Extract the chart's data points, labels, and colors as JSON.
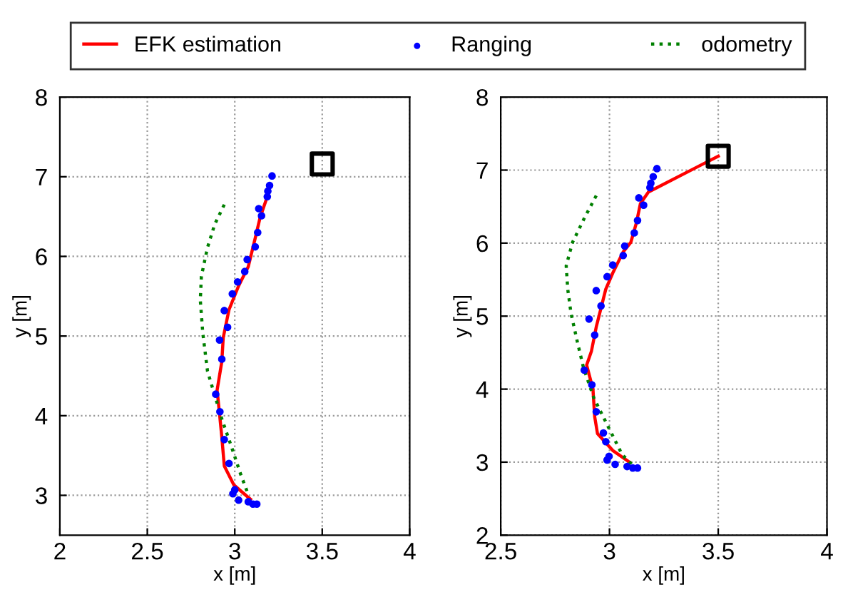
{
  "chart_data": [
    {
      "type": "line",
      "xlabel": "x [m]",
      "ylabel": "y [m]",
      "xlim": [
        2,
        4
      ],
      "ylim": [
        2.5,
        8
      ],
      "xticks": [
        2,
        2.5,
        3,
        3.5,
        4
      ],
      "yticks": [
        3,
        4,
        5,
        6,
        7,
        8
      ],
      "grid": true,
      "legend": "top",
      "series": [
        {
          "name": "EFK estimation",
          "color": "#ff0000",
          "line_style": "solid",
          "marker": "none",
          "x": [
            3.178,
            3.145,
            3.117,
            3.077,
            3.022,
            2.967,
            2.934,
            2.926,
            2.899,
            2.913,
            2.926,
            2.94,
            2.995,
            3.09
          ],
          "values": [
            6.7,
            6.49,
            6.23,
            5.87,
            5.63,
            5.33,
            4.98,
            4.68,
            4.32,
            4.02,
            3.73,
            3.37,
            3.13,
            2.95
          ]
        },
        {
          "name": "Ranging",
          "type": "scatter",
          "color": "#0000ff",
          "marker": "circle",
          "x": [
            3.213,
            3.199,
            3.189,
            3.186,
            3.137,
            3.153,
            3.131,
            3.117,
            3.071,
            3.057,
            3.016,
            2.986,
            2.94,
            2.959,
            2.913,
            2.926,
            2.891,
            2.915,
            2.94,
            2.967,
            3.0,
            2.989,
            3.022,
            3.077,
            3.104,
            3.126
          ],
          "values": [
            7.01,
            6.89,
            6.82,
            6.75,
            6.6,
            6.51,
            6.3,
            6.12,
            5.96,
            5.81,
            5.68,
            5.53,
            5.32,
            5.11,
            4.95,
            4.71,
            4.27,
            4.05,
            3.7,
            3.4,
            3.07,
            3.02,
            2.94,
            2.92,
            2.89,
            2.89
          ]
        },
        {
          "name": "odometry",
          "color": "#008000",
          "line_style": "dotted",
          "marker": "none",
          "x": [
            2.94,
            2.885,
            2.844,
            2.809,
            2.803,
            2.817,
            2.844,
            2.885,
            2.926,
            2.981,
            3.036,
            3.077
          ],
          "values": [
            6.65,
            6.4,
            6.11,
            5.75,
            5.45,
            5.04,
            4.56,
            4.26,
            3.96,
            3.61,
            3.25,
            3.01
          ]
        },
        {
          "type": "scatter",
          "color": "#000000",
          "marker": "square",
          "x": [
            3.5
          ],
          "values": [
            7.16
          ]
        }
      ]
    },
    {
      "type": "line",
      "xlabel": "x [m]",
      "ylabel": "y [m]",
      "xlim": [
        2.5,
        4
      ],
      "ylim": [
        2,
        8
      ],
      "xticks": [
        2.5,
        3,
        3.5,
        4
      ],
      "yticks": [
        2,
        3,
        4,
        5,
        6,
        7,
        8
      ],
      "grid": true,
      "series": [
        {
          "color": "#ff0000",
          "line_style": "solid",
          "marker": "none",
          "x": [
            3.5,
            3.408,
            3.179,
            3.142,
            3.124,
            3.098,
            3.063,
            3.015,
            2.983,
            2.961,
            2.939,
            2.917,
            2.895,
            2.924,
            2.932,
            2.945,
            3.015,
            3.092
          ],
          "values": [
            7.19,
            7.05,
            6.7,
            6.54,
            6.28,
            6.01,
            5.88,
            5.59,
            5.37,
            5.11,
            4.85,
            4.52,
            4.33,
            4.0,
            3.62,
            3.39,
            3.16,
            3.0
          ]
        },
        {
          "type": "scatter",
          "color": "#0000ff",
          "marker": "circle",
          "x": [
            3.218,
            3.201,
            3.19,
            3.186,
            3.135,
            3.157,
            3.129,
            3.114,
            3.07,
            3.063,
            3.015,
            2.989,
            2.939,
            2.961,
            2.906,
            2.932,
            2.884,
            2.919,
            2.939,
            2.972,
            2.983,
            2.998,
            2.989,
            3.026,
            3.081,
            3.107,
            3.129
          ],
          "values": [
            7.02,
            6.91,
            6.82,
            6.76,
            6.62,
            6.52,
            6.31,
            6.14,
            5.96,
            5.83,
            5.7,
            5.54,
            5.35,
            5.14,
            4.96,
            4.74,
            4.26,
            4.06,
            3.69,
            3.4,
            3.28,
            3.08,
            3.03,
            2.97,
            2.94,
            2.92,
            2.92
          ]
        },
        {
          "color": "#008000",
          "line_style": "dotted",
          "marker": "none",
          "x": [
            2.939,
            2.884,
            2.83,
            2.801,
            2.808,
            2.823,
            2.852,
            2.88,
            2.928,
            2.993,
            3.059,
            3.103
          ],
          "values": [
            6.65,
            6.34,
            6.01,
            5.69,
            5.37,
            5.04,
            4.65,
            4.3,
            3.88,
            3.49,
            3.1,
            2.97
          ]
        },
        {
          "type": "scatter",
          "color": "#000000",
          "marker": "square",
          "x": [
            3.5
          ],
          "values": [
            7.19
          ]
        }
      ]
    }
  ]
}
